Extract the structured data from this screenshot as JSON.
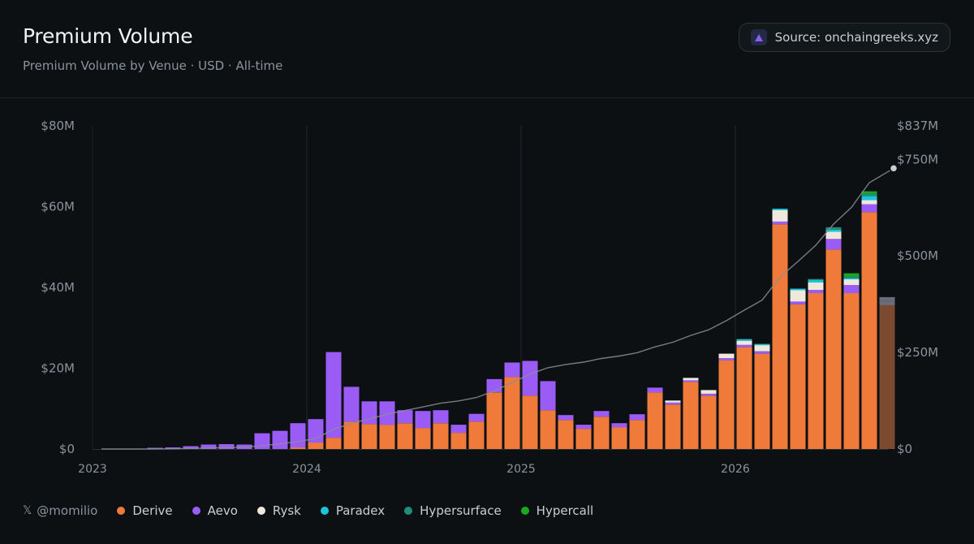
{
  "header": {
    "title": "Premium Volume",
    "subtitle": "Premium Volume by Venue · USD · All-time",
    "source_label": "Source: onchaingreeks.xyz",
    "source_icon": "triangle-icon"
  },
  "footer": {
    "handle": "@momilio",
    "handle_icon": "x-logo-icon"
  },
  "colors": {
    "background": "#0c1013",
    "Derive": "#f07a3a",
    "Aevo": "#9b5cf6",
    "Rysk": "#efe9dc",
    "Paradex": "#1cc5d9",
    "Hypersurface": "#1f8f7a",
    "Hypercall": "#19a81f",
    "cumulative_line": "#8a8f93",
    "latest_bar": "#7b4a2f"
  },
  "chart_data": {
    "type": "bar",
    "stacked": true,
    "title": "Premium Volume",
    "subtitle": "Premium Volume by Venue · USD · All-time",
    "x_ticks": [
      "2023",
      "2024",
      "2025",
      "2026"
    ],
    "y_ticks_left": [
      "$0",
      "$20M",
      "$40M",
      "$60M",
      "$80M"
    ],
    "y_ticks_right": [
      "$0",
      "$250M",
      "$500M",
      "$750M",
      "$837M"
    ],
    "ylim_left": [
      0,
      80000000
    ],
    "ylim_right": [
      0,
      837000000
    ],
    "grid": "vertical lines at year boundaries",
    "legend_position": "bottom",
    "x": [
      "2023-01",
      "2023-02",
      "2023-03",
      "2023-04",
      "2023-05",
      "2023-06",
      "2023-07",
      "2023-08",
      "2023-09",
      "2023-10",
      "2023-11",
      "2023-12",
      "2024-01",
      "2024-02",
      "2024-03",
      "2024-04",
      "2024-05",
      "2024-06",
      "2024-07",
      "2024-08",
      "2024-09",
      "2024-10",
      "2024-11",
      "2024-12",
      "2025-01",
      "2025-02",
      "2025-03",
      "2025-04",
      "2025-05",
      "2025-06",
      "2025-07",
      "2025-08",
      "2025-09",
      "2025-10",
      "2025-11",
      "2025-12",
      "2026-01",
      "2026-02",
      "2026-03",
      "2026-04",
      "2026-05",
      "2026-06",
      "2026-07",
      "2026-08",
      "2026-09"
    ],
    "series": [
      {
        "name": "Derive",
        "values": [
          0,
          0,
          0,
          0,
          0,
          0,
          0,
          0,
          0,
          0,
          0,
          0.4,
          1.6,
          2.8,
          6.8,
          6.2,
          6.0,
          6.4,
          5.2,
          6.4,
          4.0,
          6.8,
          14.0,
          17.8,
          13.2,
          9.6,
          7.2,
          5.0,
          8.0,
          5.4,
          7.2,
          14.0,
          11.0,
          16.6,
          13.2,
          22.0,
          25.2,
          23.6,
          55.6,
          35.8,
          38.6,
          49.4,
          38.6,
          58.6,
          35.6
        ]
      },
      {
        "name": "Aevo",
        "values": [
          0,
          0,
          0,
          0.3,
          0.4,
          0.7,
          1.1,
          1.2,
          1.1,
          3.9,
          4.5,
          6.0,
          5.8,
          21.2,
          8.6,
          5.6,
          5.8,
          3.2,
          4.2,
          3.2,
          2.0,
          1.9,
          3.3,
          3.6,
          8.6,
          7.2,
          1.2,
          1.0,
          1.4,
          1.0,
          1.4,
          1.2,
          0.5,
          0.4,
          0.5,
          0.5,
          0.6,
          0.6,
          0.7,
          0.7,
          0.8,
          2.6,
          2.0,
          2.0,
          0.6
        ]
      },
      {
        "name": "Rysk",
        "values": [
          0,
          0,
          0,
          0,
          0,
          0,
          0,
          0,
          0,
          0,
          0,
          0,
          0,
          0,
          0,
          0,
          0,
          0,
          0,
          0,
          0,
          0,
          0,
          0,
          0,
          0,
          0,
          0,
          0,
          0,
          0,
          0,
          0.5,
          0.6,
          0.9,
          1.1,
          1.0,
          1.5,
          2.8,
          2.8,
          1.8,
          1.8,
          1.4,
          1.0,
          0.4
        ]
      },
      {
        "name": "Paradex",
        "values": [
          0,
          0,
          0,
          0,
          0,
          0,
          0,
          0,
          0,
          0,
          0,
          0,
          0,
          0,
          0,
          0,
          0,
          0,
          0,
          0,
          0,
          0,
          0,
          0,
          0,
          0,
          0,
          0,
          0,
          0,
          0,
          0,
          0,
          0,
          0,
          0,
          0.4,
          0.3,
          0.4,
          0.4,
          0.6,
          0.5,
          0.3,
          1.0,
          0.3
        ]
      },
      {
        "name": "Hypersurface",
        "values": [
          0,
          0,
          0,
          0,
          0,
          0,
          0,
          0,
          0,
          0,
          0,
          0,
          0,
          0,
          0,
          0,
          0,
          0,
          0,
          0,
          0,
          0,
          0,
          0,
          0,
          0,
          0,
          0,
          0,
          0,
          0,
          0,
          0,
          0,
          0,
          0,
          0,
          0,
          0,
          0,
          0.3,
          0.6,
          0.4,
          0.6,
          0.5
        ]
      },
      {
        "name": "Hypercall",
        "values": [
          0,
          0,
          0,
          0,
          0,
          0,
          0,
          0,
          0,
          0,
          0,
          0,
          0,
          0,
          0,
          0,
          0,
          0,
          0,
          0,
          0,
          0,
          0,
          0,
          0,
          0,
          0,
          0,
          0,
          0,
          0,
          0,
          0,
          0,
          0,
          0,
          0,
          0,
          0,
          0,
          0,
          0,
          0.8,
          0.6,
          0.2
        ]
      }
    ],
    "cumulative_line": {
      "axis": "right",
      "values": [
        0,
        0,
        0,
        0.3,
        0.7,
        1.4,
        2.5,
        3.7,
        4.8,
        8.7,
        13.2,
        19.6,
        27.0,
        51.0,
        66.4,
        78.2,
        90.0,
        99.6,
        109.0,
        118.6,
        124.6,
        133.3,
        150.6,
        172.0,
        193.8,
        210.6,
        219.0,
        225.0,
        234.4,
        240.8,
        249.4,
        264.6,
        276.6,
        294.2,
        308.8,
        332.4,
        359.6,
        385.6,
        445.5,
        485.5,
        527.6,
        582.5,
        625.9,
        689.8,
        727.0
      ]
    }
  }
}
